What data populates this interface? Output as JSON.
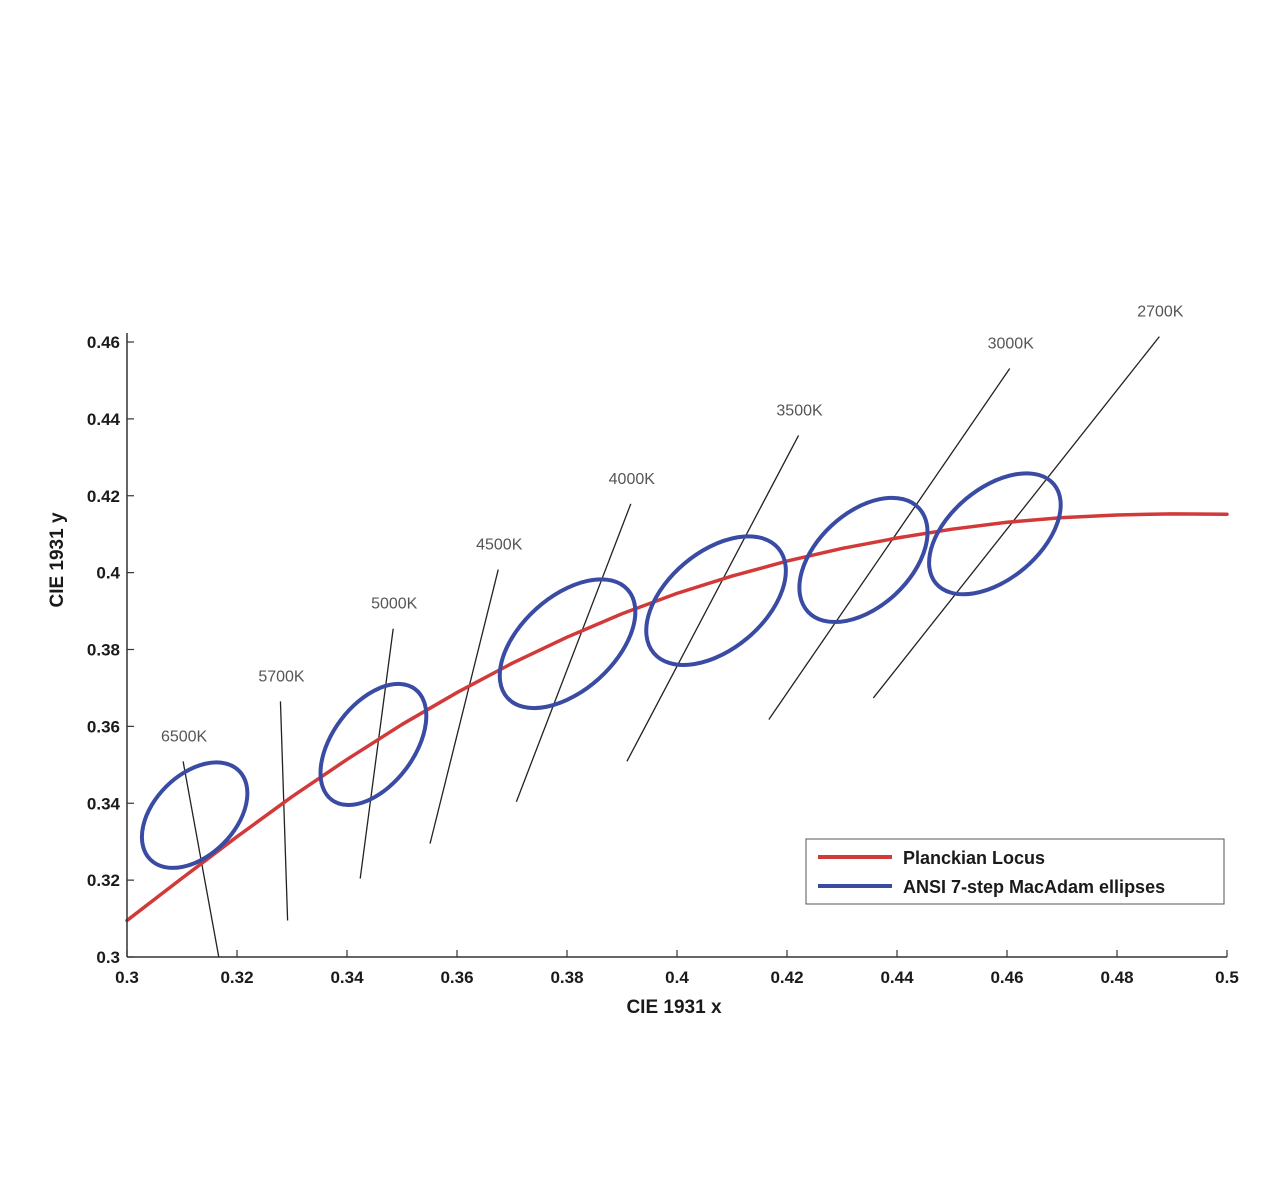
{
  "chart_data": {
    "type": "line",
    "xlabel": "CIE 1931 x",
    "ylabel": "CIE 1931 y",
    "xlim": [
      0.3,
      0.5
    ],
    "ylim": [
      0.3,
      0.46
    ],
    "xticks": [
      "0.3",
      "0.32",
      "0.34",
      "0.36",
      "0.38",
      "0.4",
      "0.42",
      "0.44",
      "0.46",
      "0.48",
      "0.5"
    ],
    "xtick_values": [
      0.3,
      0.32,
      0.34,
      0.36,
      0.38,
      0.4,
      0.42,
      0.44,
      0.46,
      0.48,
      0.5
    ],
    "yticks": [
      "0.3",
      "0.32",
      "0.34",
      "0.36",
      "0.38",
      "0.4",
      "0.42",
      "0.44",
      "0.46"
    ],
    "ytick_values": [
      0.3,
      0.32,
      0.34,
      0.36,
      0.38,
      0.4,
      0.42,
      0.44,
      0.46
    ],
    "grid": false,
    "legend_position": "bottom-right",
    "series": [
      {
        "name": "Planckian Locus",
        "color": "#d23a3a",
        "x": [
          0.3,
          0.31,
          0.32,
          0.33,
          0.34,
          0.35,
          0.36,
          0.37,
          0.38,
          0.39,
          0.4,
          0.41,
          0.42,
          0.43,
          0.44,
          0.45,
          0.46,
          0.47,
          0.48,
          0.49,
          0.5
        ],
        "y": [
          0.3095,
          0.3205,
          0.3313,
          0.3417,
          0.3514,
          0.3605,
          0.3688,
          0.3764,
          0.3832,
          0.3893,
          0.3946,
          0.3991,
          0.403,
          0.4063,
          0.409,
          0.4113,
          0.4131,
          0.4143,
          0.415,
          0.4153,
          0.4152
        ]
      },
      {
        "name": "ANSI 7-step MacAdam ellipses",
        "color": "#3a4ba3",
        "ellipses": [
          {
            "cct": "6500K",
            "cx": 0.3123,
            "cy": 0.3369,
            "rx": 0.0114,
            "ry": 0.0105,
            "angle_deg": -45
          },
          {
            "cct": "5000K",
            "cx": 0.3448,
            "cy": 0.3553,
            "rx": 0.0126,
            "ry": 0.0106,
            "angle_deg": -53
          },
          {
            "cct": "4000K",
            "cx": 0.3801,
            "cy": 0.3815,
            "rx": 0.0147,
            "ry": 0.0122,
            "angle_deg": -42
          },
          {
            "cct": "3500K",
            "cx": 0.4071,
            "cy": 0.3927,
            "rx": 0.0148,
            "ry": 0.0127,
            "angle_deg": -40
          },
          {
            "cct": "3000K",
            "cx": 0.4339,
            "cy": 0.4033,
            "rx": 0.0138,
            "ry": 0.0122,
            "angle_deg": -43
          },
          {
            "cct": "2700K",
            "cx": 0.4578,
            "cy": 0.4101,
            "rx": 0.014,
            "ry": 0.0118,
            "angle_deg": -40
          }
        ]
      }
    ],
    "isotherms": [
      {
        "label": "6500K",
        "x1": 0.3102,
        "y1": 0.3509,
        "x2": 0.3167,
        "y2": 0.2999
      },
      {
        "label": "5700K",
        "x1": 0.3279,
        "y1": 0.3665,
        "x2": 0.3292,
        "y2": 0.3095
      },
      {
        "label": "5000K",
        "x1": 0.3484,
        "y1": 0.3854,
        "x2": 0.3424,
        "y2": 0.3204
      },
      {
        "label": "4500K",
        "x1": 0.3675,
        "y1": 0.4008,
        "x2": 0.3551,
        "y2": 0.3295
      },
      {
        "label": "4000K",
        "x1": 0.3916,
        "y1": 0.4179,
        "x2": 0.3708,
        "y2": 0.3404
      },
      {
        "label": "3500K",
        "x1": 0.4221,
        "y1": 0.4357,
        "x2": 0.3909,
        "y2": 0.3509
      },
      {
        "label": "3000K",
        "x1": 0.4605,
        "y1": 0.4531,
        "x2": 0.4167,
        "y2": 0.3618
      },
      {
        "label": "2700K",
        "x1": 0.4877,
        "y1": 0.4614,
        "x2": 0.4357,
        "y2": 0.3674
      }
    ],
    "annotations": [
      "6500K",
      "5700K",
      "5000K",
      "4500K",
      "4000K",
      "3500K",
      "3000K",
      "2700K"
    ]
  }
}
